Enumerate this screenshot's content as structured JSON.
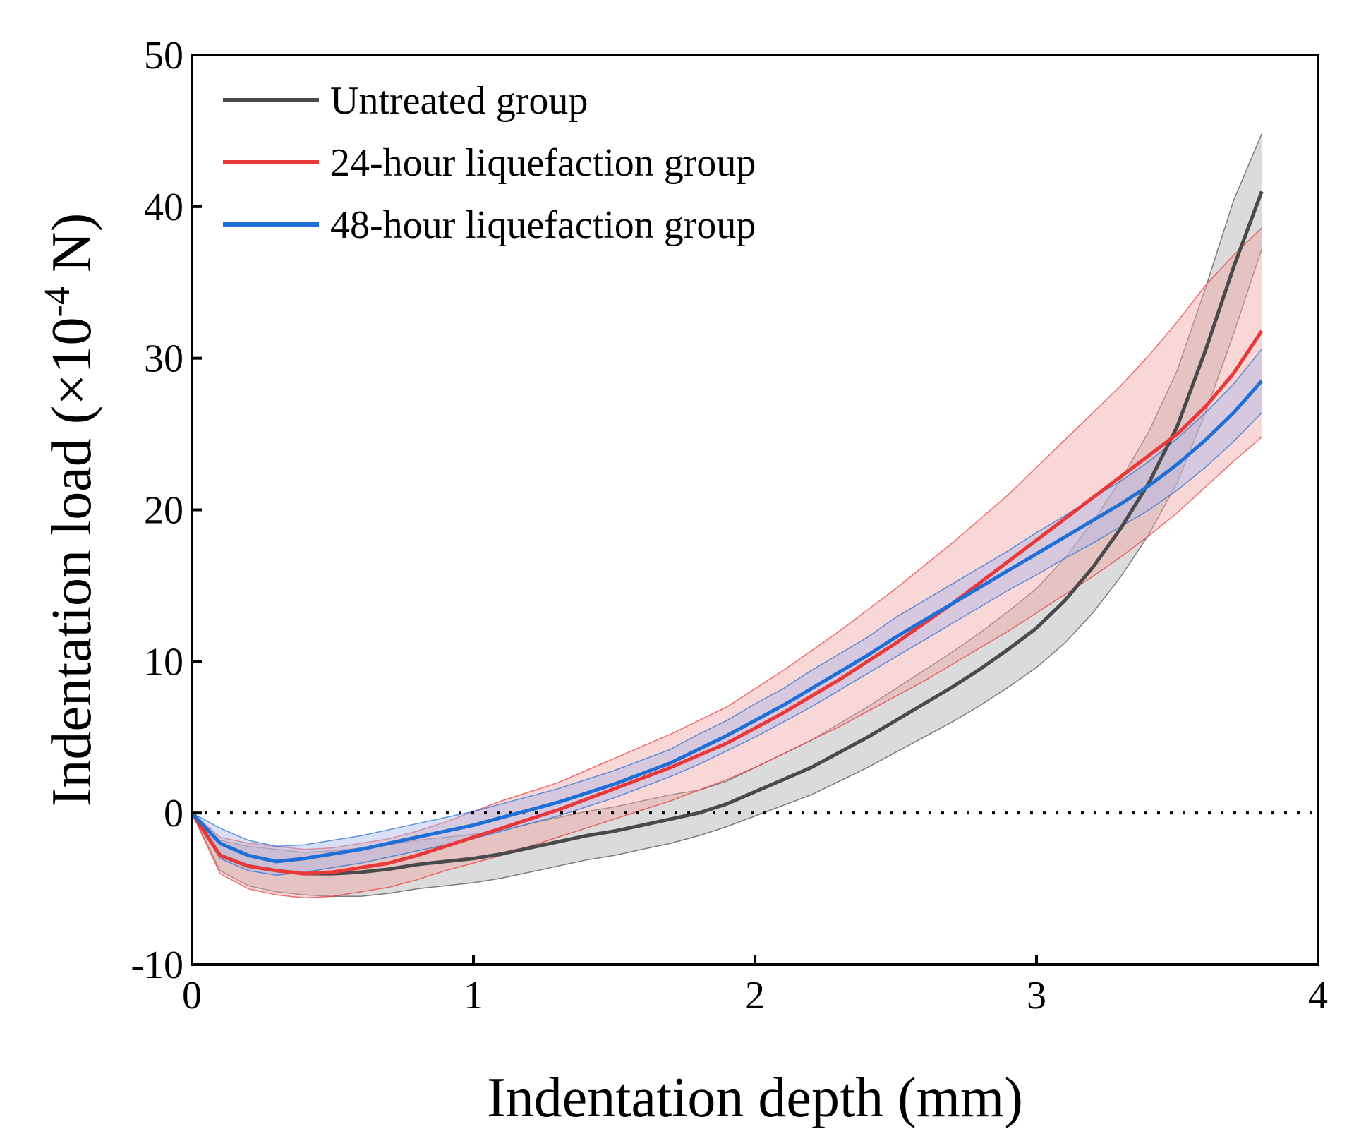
{
  "chart_data": {
    "type": "line",
    "title": "",
    "xlabel": "Indentation depth (mm)",
    "ylabel_prefix": "Indentation load (×10",
    "ylabel_exp": "-4",
    "ylabel_suffix": " N)",
    "xlim": [
      0,
      4
    ],
    "ylim": [
      -10,
      50
    ],
    "xticks": [
      0,
      1,
      2,
      3,
      4
    ],
    "yticks": [
      -10,
      0,
      10,
      20,
      30,
      40,
      50
    ],
    "xtick_labels": [
      "0",
      "1",
      "2",
      "3",
      "4"
    ],
    "ytick_labels": [
      "-10",
      "0",
      "10",
      "20",
      "30",
      "40",
      "50"
    ],
    "grid": false,
    "legend_position": "top-left",
    "reference_line": {
      "y": 0,
      "style": "dotted"
    },
    "x": [
      0.0,
      0.1,
      0.2,
      0.3,
      0.4,
      0.5,
      0.6,
      0.7,
      0.8,
      0.9,
      1.0,
      1.1,
      1.2,
      1.3,
      1.4,
      1.5,
      1.6,
      1.7,
      1.8,
      1.9,
      2.0,
      2.1,
      2.2,
      2.3,
      2.4,
      2.5,
      2.6,
      2.7,
      2.8,
      2.9,
      3.0,
      3.1,
      3.2,
      3.3,
      3.4,
      3.5,
      3.6,
      3.7,
      3.8
    ],
    "series": [
      {
        "name": "Untreated group",
        "color": "#4a4a4a",
        "band_color": "#b0b0b0",
        "values": [
          0.0,
          -2.8,
          -3.5,
          -3.8,
          -4.0,
          -4.0,
          -3.9,
          -3.7,
          -3.4,
          -3.2,
          -3.0,
          -2.7,
          -2.3,
          -1.9,
          -1.5,
          -1.2,
          -0.8,
          -0.4,
          0.0,
          0.6,
          1.4,
          2.2,
          3.0,
          4.0,
          5.0,
          6.1,
          7.2,
          8.3,
          9.5,
          10.8,
          12.2,
          14.0,
          16.2,
          18.8,
          21.8,
          25.5,
          30.5,
          36.0,
          41.0
        ],
        "lower": [
          0.0,
          -3.8,
          -4.8,
          -5.2,
          -5.4,
          -5.5,
          -5.5,
          -5.3,
          -5.0,
          -4.8,
          -4.6,
          -4.3,
          -3.9,
          -3.5,
          -3.1,
          -2.8,
          -2.4,
          -2.0,
          -1.5,
          -0.9,
          -0.2,
          0.5,
          1.2,
          2.1,
          3.0,
          4.0,
          5.0,
          6.0,
          7.1,
          8.3,
          9.6,
          11.2,
          13.2,
          15.6,
          18.4,
          21.8,
          26.4,
          31.6,
          37.2
        ],
        "upper": [
          0.0,
          -1.8,
          -2.2,
          -2.4,
          -2.6,
          -2.5,
          -2.3,
          -2.1,
          -1.8,
          -1.6,
          -1.4,
          -1.1,
          -0.7,
          -0.3,
          0.1,
          0.4,
          0.8,
          1.2,
          1.5,
          2.1,
          3.0,
          3.9,
          4.8,
          5.9,
          7.0,
          8.2,
          9.4,
          10.6,
          11.9,
          13.3,
          14.8,
          16.8,
          19.2,
          22.0,
          25.2,
          29.2,
          34.6,
          40.4,
          44.8
        ]
      },
      {
        "name": "24-hour liquefaction group",
        "color": "#e8383a",
        "band_color": "#f4a6a6",
        "values": [
          0.0,
          -2.8,
          -3.5,
          -3.8,
          -4.0,
          -3.9,
          -3.6,
          -3.3,
          -2.8,
          -2.2,
          -1.6,
          -1.0,
          -0.4,
          0.2,
          0.9,
          1.6,
          2.3,
          3.0,
          3.8,
          4.6,
          5.6,
          6.6,
          7.7,
          8.8,
          10.0,
          11.2,
          12.5,
          13.8,
          15.2,
          16.6,
          18.0,
          19.4,
          20.8,
          22.2,
          23.6,
          25.0,
          26.8,
          29.0,
          31.8
        ],
        "lower": [
          0.0,
          -4.0,
          -5.0,
          -5.4,
          -5.6,
          -5.5,
          -5.2,
          -4.9,
          -4.4,
          -3.8,
          -3.3,
          -2.8,
          -2.2,
          -1.6,
          -1.0,
          -0.4,
          0.2,
          0.8,
          1.5,
          2.2,
          3.0,
          3.9,
          4.8,
          5.7,
          6.7,
          7.7,
          8.7,
          9.8,
          10.9,
          12.0,
          13.2,
          14.4,
          15.6,
          16.9,
          18.3,
          19.8,
          21.5,
          23.2,
          24.8
        ],
        "upper": [
          0.0,
          -1.6,
          -2.0,
          -2.2,
          -2.4,
          -2.3,
          -2.0,
          -1.7,
          -1.2,
          -0.6,
          0.1,
          0.8,
          1.4,
          2.0,
          2.8,
          3.6,
          4.4,
          5.2,
          6.1,
          7.0,
          8.2,
          9.4,
          10.7,
          12.0,
          13.4,
          14.8,
          16.3,
          17.8,
          19.4,
          21.0,
          22.8,
          24.6,
          26.4,
          28.2,
          30.2,
          32.4,
          34.8,
          36.8,
          38.6
        ]
      },
      {
        "name": "48-hour liquefaction group",
        "color": "#1f6fd6",
        "band_color": "#aab8e8",
        "values": [
          0.0,
          -2.0,
          -2.8,
          -3.2,
          -3.0,
          -2.7,
          -2.4,
          -2.0,
          -1.6,
          -1.2,
          -0.8,
          -0.3,
          0.2,
          0.7,
          1.3,
          1.9,
          2.6,
          3.3,
          4.2,
          5.1,
          6.1,
          7.1,
          8.2,
          9.3,
          10.4,
          11.6,
          12.7,
          13.8,
          14.9,
          16.0,
          17.1,
          18.2,
          19.3,
          20.4,
          21.6,
          23.0,
          24.6,
          26.4,
          28.5
        ],
        "lower": [
          0.0,
          -3.0,
          -3.8,
          -4.1,
          -3.9,
          -3.6,
          -3.3,
          -2.9,
          -2.5,
          -2.1,
          -1.7,
          -1.2,
          -0.7,
          -0.2,
          0.4,
          1.0,
          1.7,
          2.4,
          3.2,
          4.1,
          5.0,
          6.0,
          7.0,
          8.1,
          9.2,
          10.3,
          11.4,
          12.5,
          13.6,
          14.7,
          15.7,
          16.8,
          17.8,
          18.9,
          20.0,
          21.3,
          22.8,
          24.5,
          26.4
        ],
        "upper": [
          0.0,
          -1.0,
          -1.8,
          -2.2,
          -2.1,
          -1.8,
          -1.5,
          -1.1,
          -0.7,
          -0.3,
          0.1,
          0.6,
          1.1,
          1.6,
          2.2,
          2.8,
          3.5,
          4.2,
          5.2,
          6.1,
          7.2,
          8.2,
          9.4,
          10.5,
          11.6,
          12.9,
          14.0,
          15.1,
          16.2,
          17.3,
          18.5,
          19.6,
          20.8,
          21.9,
          23.2,
          24.7,
          26.4,
          28.3,
          30.6
        ]
      }
    ]
  }
}
